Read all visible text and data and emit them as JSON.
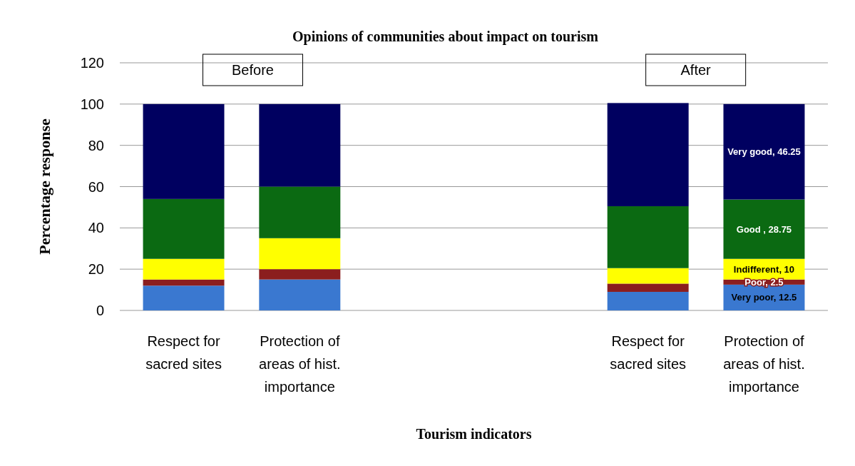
{
  "chart_data": {
    "type": "bar",
    "stacked": true,
    "title": "Opinions of communities about impact on tourism",
    "xlabel": "Tourism indicators",
    "ylabel": "Percentage response",
    "categories": [
      "Respect for sacred sites",
      "Protection of areas of hist. importance",
      null,
      null,
      "Respect for sacred sites",
      "Protection of areas of hist. importance"
    ],
    "series": [
      {
        "color": "#3a78d0",
        "values": [
          12,
          15,
          null,
          null,
          9,
          12.5
        ],
        "value_labels": [
          null,
          null,
          null,
          null,
          null,
          "Very poor, 12.5"
        ]
      },
      {
        "color": "#8b1e1e",
        "values": [
          3,
          5,
          null,
          null,
          4,
          2.5
        ],
        "value_labels": [
          null,
          null,
          null,
          null,
          null,
          "Poor, 2.5"
        ]
      },
      {
        "color": "#ffff00",
        "values": [
          10,
          15,
          null,
          null,
          7.5,
          10
        ],
        "value_labels": [
          null,
          null,
          null,
          null,
          null,
          "Indifferent, 10"
        ]
      },
      {
        "color": "#0b6a12",
        "values": [
          29,
          25,
          null,
          null,
          30,
          28.75
        ],
        "value_labels": [
          null,
          null,
          null,
          null,
          null,
          "Good , 28.75"
        ]
      },
      {
        "color": "#000060",
        "values": [
          46,
          40,
          null,
          null,
          50,
          46.25
        ],
        "value_labels": [
          null,
          null,
          null,
          null,
          null,
          "Very good, 46.25"
        ]
      }
    ],
    "annotations": [
      "Before",
      "After"
    ],
    "ylim": [
      0,
      120
    ],
    "yticks": [
      0,
      20,
      40,
      60,
      80,
      100,
      120
    ],
    "grid": "y"
  }
}
